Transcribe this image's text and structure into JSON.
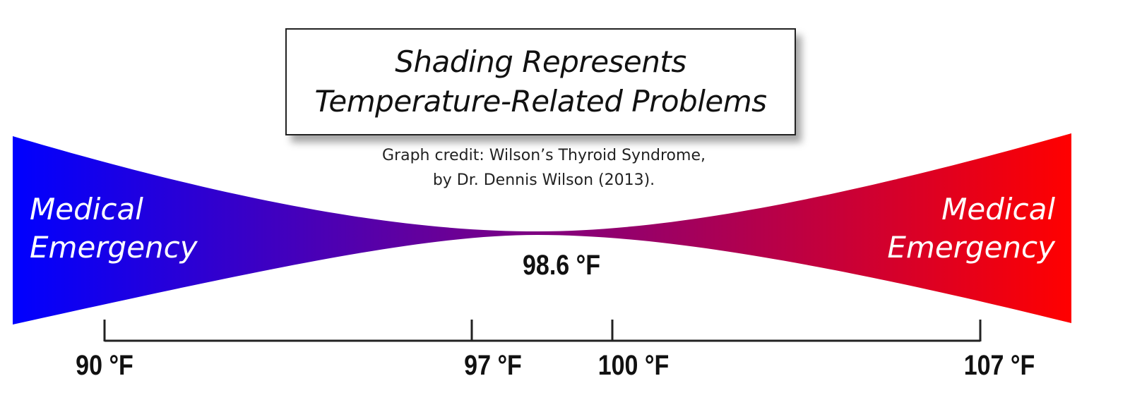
{
  "title": {
    "line1": "Shading Represents",
    "line2": "Temperature-Related Problems"
  },
  "credit": {
    "line1": "Graph credit: Wilson’s Thyroid Syndrome,",
    "line2": "by Dr. Dennis Wilson (2013)."
  },
  "left_label": {
    "line1": "Medical",
    "line2": "Emergency"
  },
  "right_label": {
    "line1": "Medical",
    "line2": "Emergency"
  },
  "normal_temp": "98.6 °F",
  "axis_ticks": [
    "90 °F",
    "97 °F",
    "100 °F",
    "107 °F"
  ],
  "colors": {
    "cold": "#0000ff",
    "middle": "#800080",
    "hot": "#ff0000"
  }
}
